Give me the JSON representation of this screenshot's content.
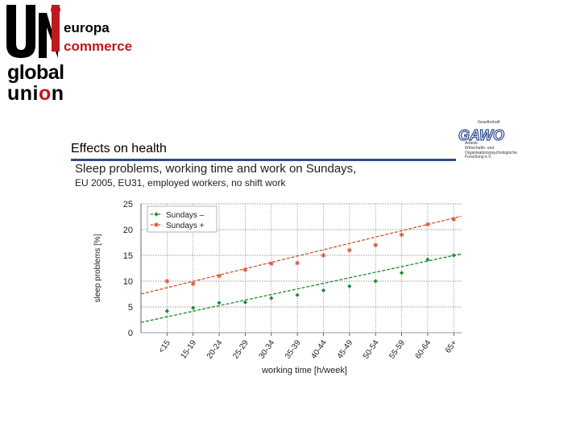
{
  "logo": {
    "brand_text": "UNI",
    "line1": "europa",
    "line2": "commerce",
    "line3": "global",
    "line4_black": "uni",
    "line4_red": "o",
    "line4_black2": "n"
  },
  "gawo_logo": {
    "top": "Gesellschaft",
    "wordmark": "GAWO",
    "body": "Arbeits-\nWirtschafts- und\nOrganisationspsychologische\nForschung e.V."
  },
  "slide": {
    "heading": "Effects on health",
    "subtitle": "Sleep problems, working time and work on Sundays,",
    "subtitle2": "EU 2005, EU31, employed workers, no shift work"
  },
  "colors": {
    "green": "#1f8a2a",
    "red": "#d5502e",
    "accent": "#2f4b8f",
    "grid": "#7a7a7a"
  },
  "chart_data": {
    "type": "scatter",
    "title": "",
    "xlabel": "working time [h/week]",
    "ylabel": "sleep problems [%]",
    "ylim": [
      0,
      25
    ],
    "yticks": [
      "0",
      "5",
      "10",
      "15",
      "20",
      "25"
    ],
    "categories": [
      "<15",
      "15-19",
      "20-24",
      "25-29",
      "30-34",
      "35-39",
      "40-44",
      "45-49",
      "50-54",
      "55-59",
      "60-64",
      "65+"
    ],
    "series": [
      {
        "name": "Sundays –",
        "marker": "diamond",
        "values": [
          4.2,
          4.8,
          5.8,
          5.9,
          6.7,
          7.3,
          8.2,
          9.0,
          10.0,
          11.6,
          14.2,
          15.0
        ],
        "trend": [
          2.0,
          15.3
        ]
      },
      {
        "name": "Sundays +",
        "marker": "star",
        "values": [
          10.0,
          9.5,
          11.0,
          12.2,
          13.4,
          13.5,
          15.0,
          16.0,
          17.0,
          19.0,
          21.0,
          22.0
        ],
        "trend": [
          7.5,
          22.6
        ]
      }
    ],
    "legend_position": "top-left"
  }
}
